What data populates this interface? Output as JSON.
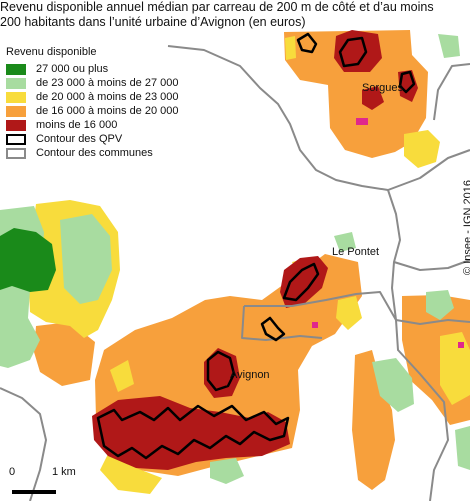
{
  "title": {
    "line1": "Revenu disponible annuel médian par carreau de 200 m de côté et d’au moins",
    "line2": "200 habitants dans l’unité urbaine d’Avignon (en euros)"
  },
  "legend": {
    "title": "Revenu disponible",
    "classes": [
      {
        "label": "27 000 ou plus",
        "color": "#1a8a1a"
      },
      {
        "label": "de 23 000 à moins de 27 000",
        "color": "#a8dca0"
      },
      {
        "label": "de 20 000 à moins de 23 000",
        "color": "#f8dc3c"
      },
      {
        "label": "de 16 000 à moins de 20 000",
        "color": "#f7a03c"
      },
      {
        "label": "moins de 16 000",
        "color": "#b01818"
      }
    ],
    "qpv_label": "Contour des QPV",
    "communes_label": "Contour des communes"
  },
  "places": {
    "sorgues": "Sorgues",
    "le_pontet": "Le Pontet",
    "avignon": "Avignon"
  },
  "copyright": "© Insee - IGN 2016",
  "scale": {
    "zero": "0",
    "one": "1 km"
  },
  "colors": {
    "qpv": "#000000",
    "communes": "#8a8a8a",
    "marker": "#e0288c"
  }
}
